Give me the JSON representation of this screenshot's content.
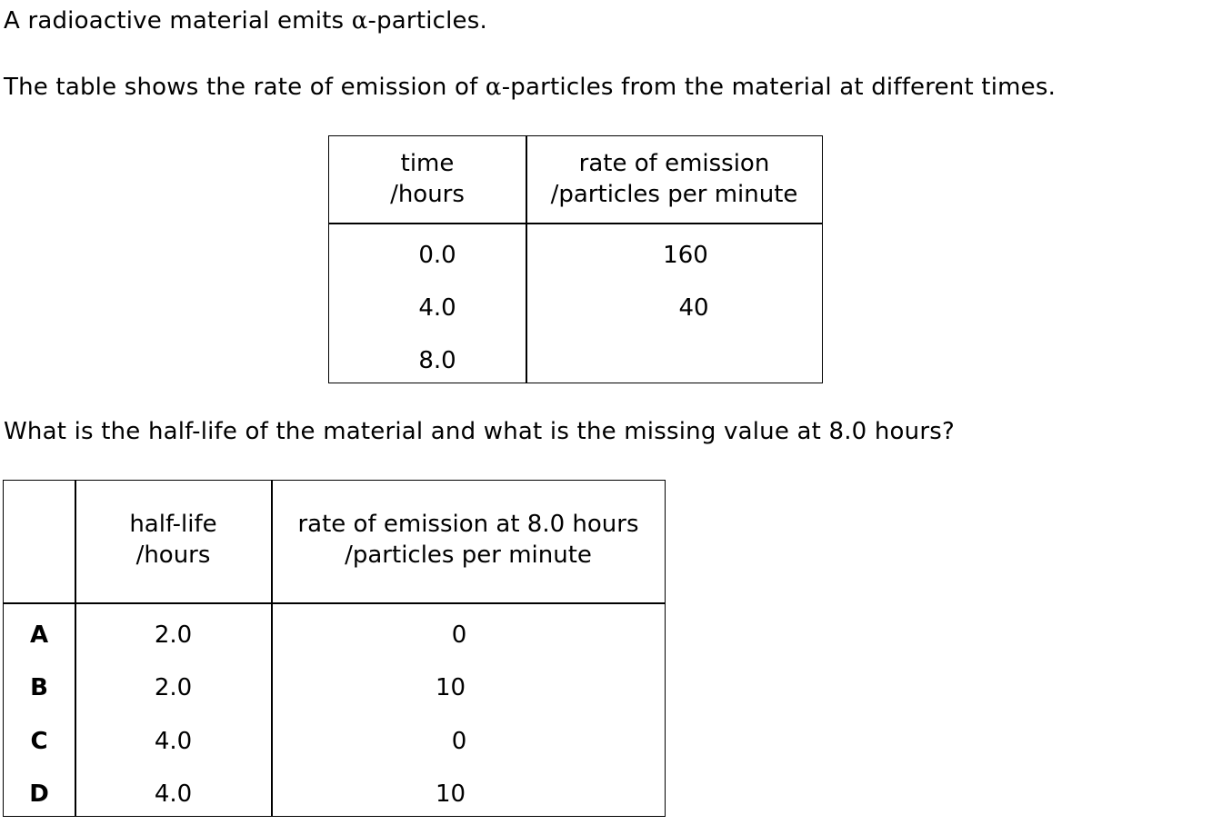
{
  "intro": {
    "line1_before": "A radioactive material emits ",
    "line1_alpha": "α",
    "line1_after": "-particles.",
    "line2_before": "The table shows the rate of emission of ",
    "line2_alpha": "α",
    "line2_after": "-particles from the material at different times."
  },
  "table1": {
    "headers": [
      [
        "time",
        "/hours"
      ],
      [
        "rate of emission",
        "/particles per minute"
      ]
    ],
    "rows": [
      {
        "time": "0.0",
        "rate": "160"
      },
      {
        "time": "4.0",
        "rate": "40"
      },
      {
        "time": "8.0",
        "rate": ""
      }
    ]
  },
  "question": "What is the half-life of the material and what is the missing value at 8.0 hours?",
  "table2": {
    "headers": [
      "",
      [
        "half-life",
        "/hours"
      ],
      [
        "rate of emission at 8.0 hours",
        "/particles per minute"
      ]
    ],
    "rows": [
      {
        "option": "A",
        "half_life": "2.0",
        "rate": "0"
      },
      {
        "option": "B",
        "half_life": "2.0",
        "rate": "10"
      },
      {
        "option": "C",
        "half_life": "4.0",
        "rate": "0"
      },
      {
        "option": "D",
        "half_life": "4.0",
        "rate": "10"
      }
    ]
  }
}
